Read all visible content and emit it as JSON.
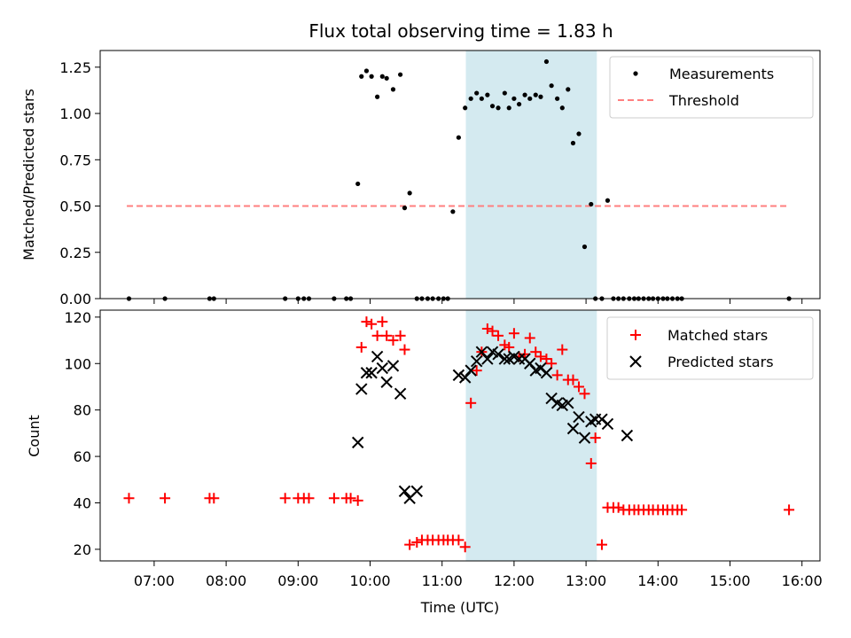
{
  "chart_data": [
    {
      "type": "scatter",
      "title": "Flux total observing time = 1.83 h",
      "ylabel": "Matched/Predicted stars",
      "xlim": [
        6.25,
        16.25
      ],
      "ylim": [
        0,
        1.34
      ],
      "yticks": [
        0,
        0.25,
        0.5,
        0.75,
        1.0,
        1.25
      ],
      "ytick_labels": [
        "0.00",
        "0.25",
        "0.50",
        "0.75",
        "1.00",
        "1.25"
      ],
      "shaded_span": {
        "start": 11.33,
        "end": 13.15,
        "color": "#d4eaf0"
      },
      "legend": {
        "position": "top-right",
        "entries": [
          "Measurements",
          "Threshold"
        ]
      },
      "series": [
        {
          "name": "Measurements",
          "marker": "dot",
          "color": "#000000",
          "x": [
            6.65,
            7.15,
            7.77,
            7.83,
            8.82,
            9.0,
            9.08,
            9.15,
            9.5,
            9.67,
            9.73,
            9.83,
            9.88,
            9.95,
            10.02,
            10.1,
            10.17,
            10.23,
            10.32,
            10.42,
            10.48,
            10.55,
            10.65,
            10.72,
            10.8,
            10.87,
            10.95,
            11.02,
            11.08,
            11.15,
            11.23,
            11.32,
            11.4,
            11.48,
            11.55,
            11.63,
            11.7,
            11.78,
            11.87,
            11.93,
            12.0,
            12.07,
            12.15,
            12.22,
            12.3,
            12.37,
            12.45,
            12.52,
            12.6,
            12.67,
            12.75,
            12.82,
            12.9,
            12.98,
            13.07,
            13.13,
            13.22,
            13.3,
            13.38,
            13.45,
            13.52,
            13.6,
            13.67,
            13.73,
            13.8,
            13.87,
            13.93,
            14.0,
            14.07,
            14.13,
            14.2,
            14.27,
            14.33,
            15.82
          ],
          "y": [
            0,
            0,
            0,
            0,
            0,
            0,
            0,
            0,
            0,
            0,
            0,
            0.62,
            1.2,
            1.23,
            1.2,
            1.09,
            1.2,
            1.19,
            1.13,
            1.21,
            0.49,
            0.57,
            0,
            0,
            0,
            0,
            0,
            0,
            0,
            0.47,
            0.87,
            1.03,
            1.08,
            1.11,
            1.08,
            1.1,
            1.04,
            1.03,
            1.11,
            1.03,
            1.08,
            1.05,
            1.1,
            1.08,
            1.1,
            1.09,
            1.28,
            1.15,
            1.08,
            1.03,
            1.13,
            0.84,
            0.89,
            0.28,
            0.51,
            0,
            0,
            0.53,
            0,
            0,
            0,
            0,
            0,
            0,
            0,
            0,
            0,
            0,
            0,
            0,
            0,
            0,
            0,
            0
          ]
        },
        {
          "name": "Threshold",
          "style": "dashed",
          "color": "#ff7f7f",
          "x": [
            6.62,
            15.82
          ],
          "y": [
            0.5,
            0.5
          ]
        }
      ]
    },
    {
      "type": "scatter",
      "xlabel": "Time (UTC)",
      "ylabel": "Count",
      "xlim": [
        6.25,
        16.25
      ],
      "ylim": [
        15,
        123
      ],
      "yticks": [
        20,
        40,
        60,
        80,
        100,
        120
      ],
      "ytick_labels": [
        "20",
        "40",
        "60",
        "80",
        "100",
        "120"
      ],
      "xticks": [
        7,
        8,
        9,
        10,
        11,
        12,
        13,
        14,
        15,
        16
      ],
      "xtick_labels": [
        "07:00",
        "08:00",
        "09:00",
        "10:00",
        "11:00",
        "12:00",
        "13:00",
        "14:00",
        "15:00",
        "16:00"
      ],
      "shaded_span": {
        "start": 11.33,
        "end": 13.15,
        "color": "#d4eaf0"
      },
      "legend": {
        "position": "top-right",
        "entries": [
          "Matched stars",
          "Predicted stars"
        ]
      },
      "series": [
        {
          "name": "Matched stars",
          "marker": "plus",
          "color": "#ff0000",
          "x": [
            6.65,
            7.15,
            7.77,
            7.83,
            8.82,
            9.0,
            9.08,
            9.15,
            9.5,
            9.67,
            9.73,
            9.83,
            9.88,
            9.95,
            10.02,
            10.1,
            10.17,
            10.23,
            10.32,
            10.42,
            10.48,
            10.55,
            10.65,
            10.72,
            10.8,
            10.87,
            10.95,
            11.02,
            11.08,
            11.15,
            11.23,
            11.32,
            11.4,
            11.48,
            11.55,
            11.63,
            11.7,
            11.78,
            11.87,
            11.93,
            12.0,
            12.07,
            12.15,
            12.22,
            12.3,
            12.37,
            12.45,
            12.52,
            12.6,
            12.67,
            12.75,
            12.82,
            12.9,
            12.98,
            13.07,
            13.13,
            13.22,
            13.3,
            13.38,
            13.45,
            13.52,
            13.6,
            13.67,
            13.73,
            13.8,
            13.87,
            13.93,
            14.0,
            14.07,
            14.13,
            14.2,
            14.27,
            14.33,
            15.82
          ],
          "y": [
            42,
            42,
            42,
            42,
            42,
            42,
            42,
            42,
            42,
            42,
            42,
            41,
            107,
            118,
            117,
            112,
            118,
            112,
            110,
            112,
            106,
            22,
            23,
            24,
            24,
            24,
            24,
            24,
            24,
            24,
            24,
            21,
            83,
            97,
            105,
            115,
            114,
            112,
            108,
            107,
            113,
            103,
            104,
            111,
            105,
            103,
            102,
            100,
            95,
            106,
            93,
            93,
            90,
            87,
            57,
            68,
            22,
            38,
            38,
            38,
            37,
            37,
            37,
            37,
            37,
            37,
            37,
            37,
            37,
            37,
            37,
            37,
            37,
            37
          ]
        },
        {
          "name": "Predicted stars",
          "marker": "x",
          "color": "#000000",
          "x": [
            9.83,
            9.88,
            9.95,
            10.02,
            10.1,
            10.17,
            10.23,
            10.32,
            10.42,
            10.48,
            10.55,
            10.65,
            11.23,
            11.32,
            11.4,
            11.48,
            11.55,
            11.63,
            11.7,
            11.78,
            11.87,
            11.93,
            12.0,
            12.07,
            12.15,
            12.22,
            12.3,
            12.37,
            12.45,
            12.52,
            12.6,
            12.67,
            12.75,
            12.82,
            12.9,
            12.98,
            13.07,
            13.13,
            13.22,
            13.3,
            13.57
          ],
          "y": [
            66,
            89,
            96,
            96,
            103,
            98,
            92,
            99,
            87,
            45,
            42,
            45,
            95,
            94,
            97,
            101,
            105,
            102,
            105,
            104,
            102,
            102,
            103,
            102,
            102,
            100,
            97,
            98,
            96,
            85,
            83,
            82,
            83,
            72,
            77,
            68,
            75,
            76,
            76,
            74,
            69
          ]
        }
      ]
    }
  ]
}
